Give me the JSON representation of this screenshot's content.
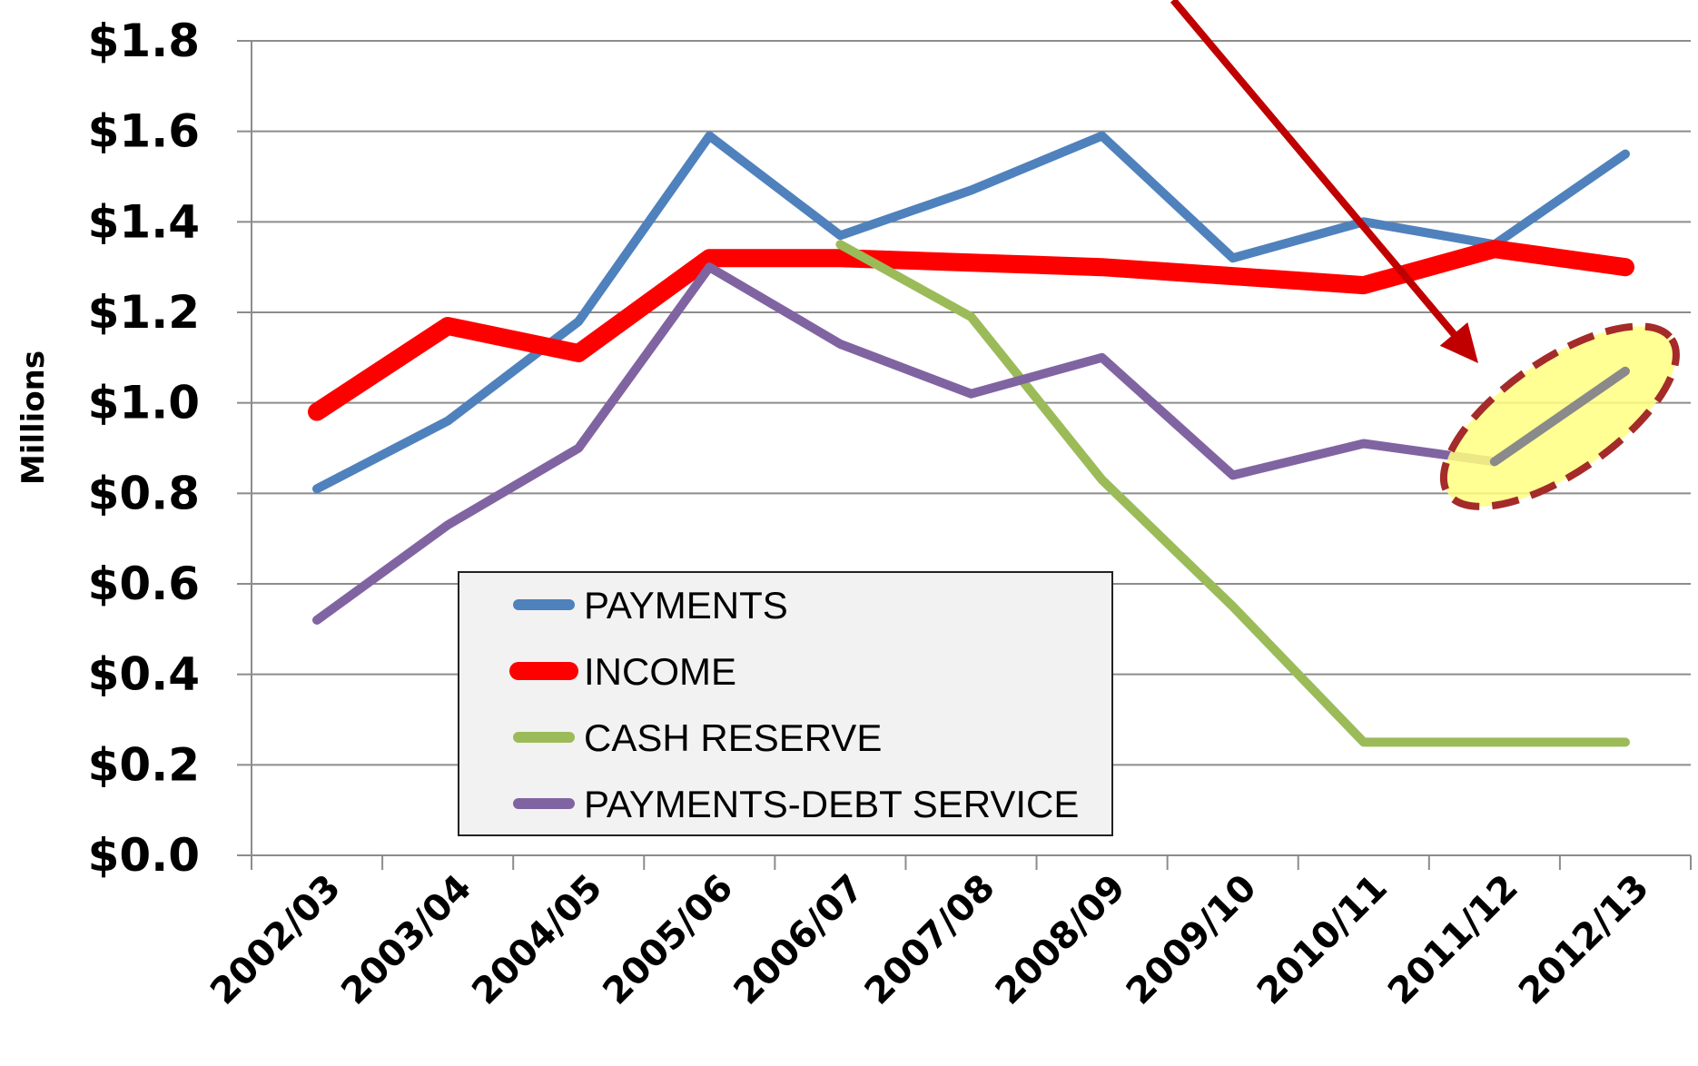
{
  "chart_data": {
    "type": "line",
    "title": "",
    "xlabel": "",
    "ylabel": "Millions",
    "ylim": [
      0,
      1.8
    ],
    "y_ticks": [
      "$0.0",
      "$0.2",
      "$0.4",
      "$0.6",
      "$0.8",
      "$1.0",
      "$1.2",
      "$1.4",
      "$1.6",
      "$1.8"
    ],
    "y_tick_values": [
      0,
      0.2,
      0.4,
      0.6,
      0.8,
      1.0,
      1.2,
      1.4,
      1.6,
      1.8
    ],
    "categories": [
      "2002/03",
      "2003/04",
      "2004/05",
      "2005/06",
      "2006/07",
      "2007/08",
      "2008/09",
      "2009/10",
      "2010/11",
      "2011/12",
      "2012/13"
    ],
    "grid": true,
    "legend_position": "lower-left",
    "series": [
      {
        "name": "PAYMENTS",
        "color": "#4f81bd",
        "values": [
          0.81,
          0.96,
          1.18,
          1.59,
          1.37,
          1.47,
          1.59,
          1.32,
          1.4,
          1.35,
          1.55
        ]
      },
      {
        "name": "INCOME",
        "color": "#ff0000",
        "values": [
          0.98,
          1.17,
          1.11,
          1.32,
          1.32,
          1.31,
          1.3,
          1.28,
          1.26,
          1.34,
          1.3
        ]
      },
      {
        "name": "CASH RESERVE",
        "color": "#9bbb59",
        "values": [
          null,
          null,
          null,
          null,
          1.35,
          1.19,
          0.83,
          0.55,
          0.25,
          0.25,
          0.25
        ]
      },
      {
        "name": "PAYMENTS-DEBT SERVICE",
        "color": "#8064a2",
        "values": [
          0.52,
          0.73,
          0.9,
          1.3,
          1.13,
          1.02,
          1.1,
          0.84,
          0.91,
          0.87,
          1.07
        ]
      }
    ],
    "annotations": [
      {
        "type": "arrow",
        "color": "#c00000",
        "target_category": "2011/12"
      },
      {
        "type": "highlight-ellipse",
        "fill": "#ffff80",
        "stroke": "#a52a2a",
        "series": "PAYMENTS-DEBT SERVICE",
        "categories": [
          "2011/12",
          "2012/13"
        ]
      }
    ]
  }
}
